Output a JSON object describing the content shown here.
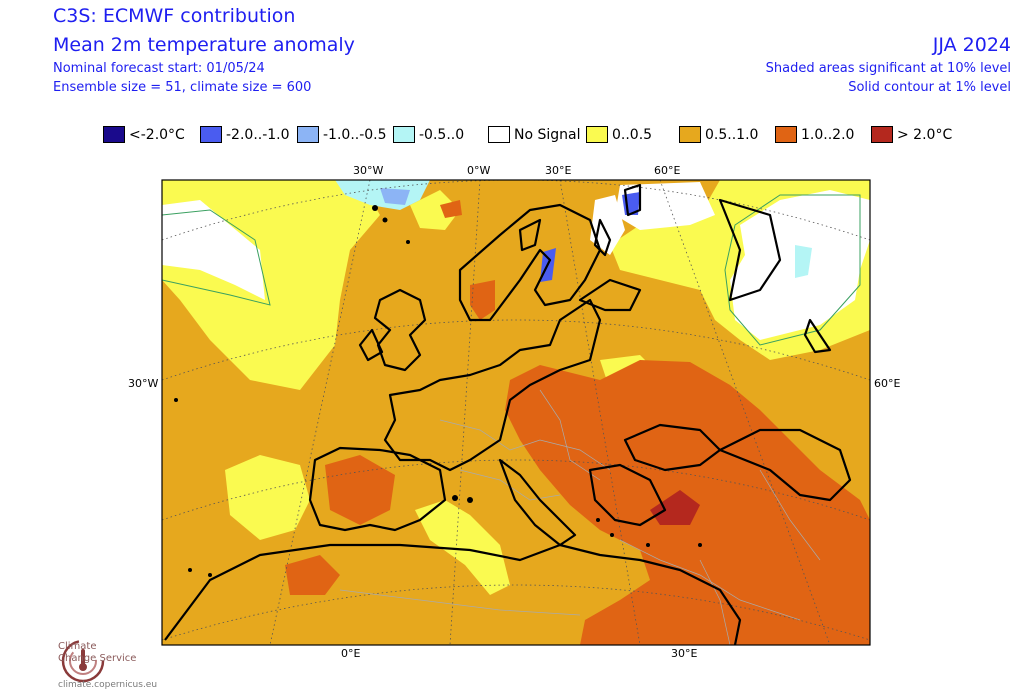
{
  "header": {
    "title": "C3S: ECMWF contribution",
    "subtitle": "Mean 2m temperature anomaly",
    "forecast_start": "Nominal forecast start: 01/05/24",
    "ensemble": "Ensemble size = 51, climate size = 600",
    "period": "JJA 2024",
    "note_10": "Shaded areas significant at 10% level",
    "note_1": "Solid contour at 1% level"
  },
  "legend": [
    {
      "label": "<-2.0°C",
      "color": "#1a0a8c"
    },
    {
      "label": "-2.0..-1.0",
      "color": "#4a5cf0"
    },
    {
      "label": "-1.0..-0.5",
      "color": "#8cb4f5"
    },
    {
      "label": "-0.5..0",
      "color": "#b4f5f5"
    },
    {
      "label": "No Signal",
      "color": "#ffffff"
    },
    {
      "label": "0..0.5",
      "color": "#fafa50"
    },
    {
      "label": "0.5..1.0",
      "color": "#e6a81e"
    },
    {
      "label": "1.0..2.0",
      "color": "#e06414"
    },
    {
      "label": "> 2.0°C",
      "color": "#b4281e"
    }
  ],
  "axes": {
    "top": [
      "30°W",
      "0°W",
      "30°E",
      "60°E"
    ],
    "left": [
      "30°W"
    ],
    "right": [
      "60°E"
    ],
    "bottom": [
      "0°E",
      "30°E"
    ]
  },
  "logo": {
    "name_line1": "Climate",
    "name_line2": "Change Service",
    "url": "climate.copernicus.eu"
  }
}
